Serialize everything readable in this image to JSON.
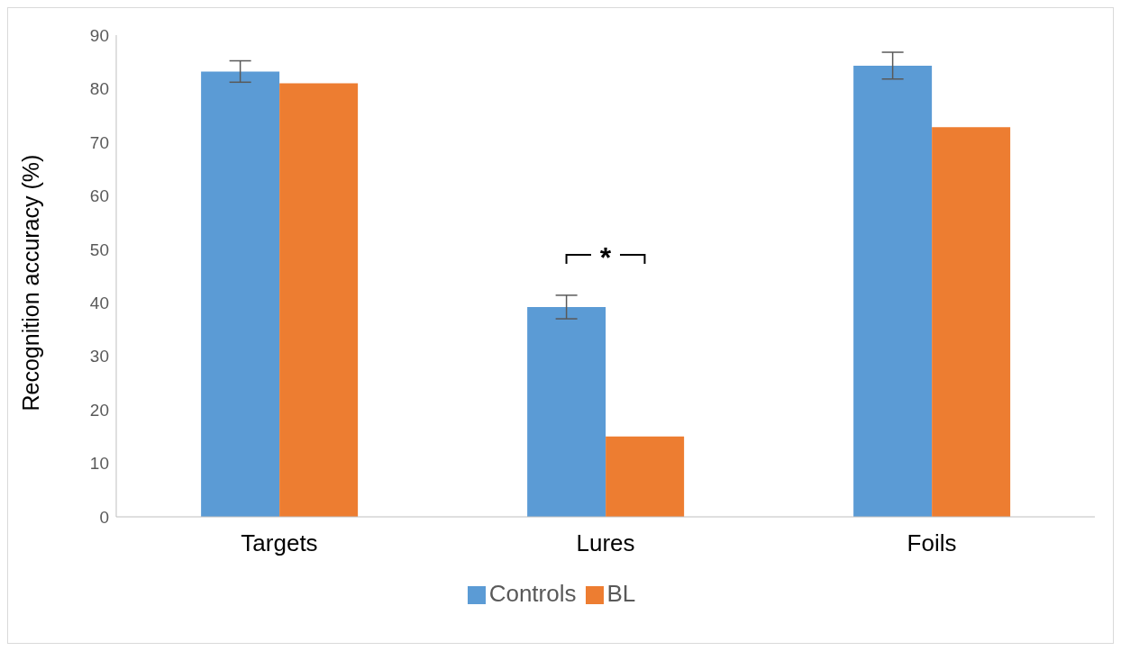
{
  "chart_data": {
    "type": "bar",
    "ylabel": "Recognition accuracy (%)",
    "categories": [
      "Targets",
      "Lures",
      "Foils"
    ],
    "series": [
      {
        "name": "Controls",
        "color": "#5b9bd5",
        "values": [
          83.2,
          39.2,
          84.3
        ],
        "errors": [
          2,
          2.2,
          2.5
        ]
      },
      {
        "name": "BL",
        "color": "#ed7d31",
        "values": [
          81,
          15,
          72.8
        ]
      }
    ],
    "ylim": [
      0,
      90
    ],
    "yticks": [
      0,
      10,
      20,
      30,
      40,
      50,
      60,
      70,
      80,
      90
    ],
    "legend": "bottom",
    "annotations": [
      "*"
    ]
  }
}
